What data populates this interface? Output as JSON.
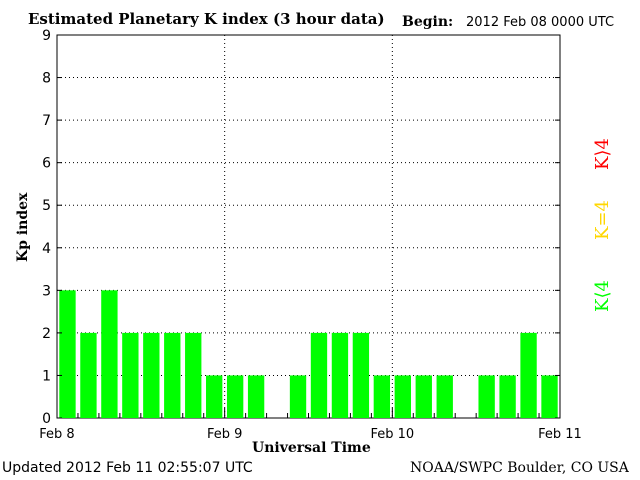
{
  "header": {
    "title": "Estimated Planetary K index (3 hour data)",
    "begin_label": "Begin:",
    "begin_value": "2012 Feb 08 0000 UTC"
  },
  "footer": {
    "updated": "Updated 2012 Feb 11 02:55:07 UTC",
    "credit": "NOAA/SWPC Boulder, CO USA"
  },
  "legend": {
    "high": "K⟩4",
    "equal": "K=4",
    "low": "K⟨4"
  },
  "colors": {
    "bar": "#00ff00",
    "high": "#ff0000",
    "equal": "#ffd700",
    "low": "#00ff00"
  },
  "chart_data": {
    "type": "bar",
    "xlabel": "Universal Time",
    "ylabel": "Kp index",
    "ylim": [
      0,
      9
    ],
    "yticks": [
      "0",
      "1",
      "2",
      "3",
      "4",
      "5",
      "6",
      "7",
      "8",
      "9"
    ],
    "xtick_labels": [
      "Feb 8",
      "Feb 9",
      "Feb 10",
      "Feb 11"
    ],
    "grid": true,
    "interval_hours": 3,
    "values": [
      3,
      2,
      3,
      2,
      2,
      2,
      2,
      1,
      1,
      1,
      0,
      1,
      2,
      2,
      2,
      1,
      1,
      1,
      1,
      0,
      1,
      1,
      2,
      1
    ]
  }
}
